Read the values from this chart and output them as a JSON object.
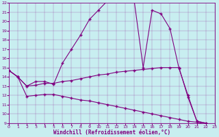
{
  "bg_color": "#c8eef0",
  "line_color": "#800080",
  "xlabel": "Windchill (Refroidissement éolien,°C)",
  "xlim": [
    0,
    23
  ],
  "ylim": [
    9,
    22
  ],
  "yticks": [
    9,
    10,
    11,
    12,
    13,
    14,
    15,
    16,
    17,
    18,
    19,
    20,
    21,
    22
  ],
  "xticks": [
    0,
    1,
    2,
    3,
    4,
    5,
    6,
    7,
    8,
    9,
    10,
    11,
    12,
    13,
    14,
    15,
    16,
    17,
    18,
    19,
    20,
    21,
    22,
    23
  ],
  "series1_x": [
    0,
    1,
    2,
    3,
    4,
    5,
    6,
    7,
    8,
    9,
    10,
    11,
    12,
    13,
    14,
    15,
    16,
    17,
    18,
    19,
    20,
    21,
    22,
    23
  ],
  "series1_y": [
    14.7,
    14.0,
    13.0,
    13.5,
    13.5,
    13.2,
    15.5,
    17.0,
    18.5,
    20.2,
    21.2,
    22.2,
    22.2,
    22.2,
    22.2,
    15.0,
    21.2,
    20.8,
    19.2,
    14.9,
    12.0,
    9.2,
    9.0,
    8.7
  ],
  "series2_x": [
    0,
    1,
    2,
    3,
    4,
    5,
    6,
    7,
    8,
    9,
    10,
    11,
    12,
    13,
    14,
    15,
    16,
    17,
    18,
    19,
    20,
    21,
    22,
    23
  ],
  "series2_y": [
    14.7,
    14.0,
    13.0,
    13.1,
    13.3,
    13.3,
    13.5,
    13.6,
    13.8,
    14.0,
    14.2,
    14.3,
    14.5,
    14.6,
    14.7,
    14.8,
    14.9,
    15.0,
    15.0,
    15.0,
    11.8,
    9.2,
    9.0,
    8.7
  ],
  "series3_x": [
    0,
    1,
    2,
    3,
    4,
    5,
    6,
    7,
    8,
    9,
    10,
    11,
    12,
    13,
    14,
    15,
    16,
    17,
    18,
    19,
    20,
    21,
    22,
    23
  ],
  "series3_y": [
    14.7,
    14.0,
    11.9,
    12.0,
    12.1,
    12.1,
    11.9,
    11.7,
    11.5,
    11.4,
    11.2,
    11.0,
    10.8,
    10.6,
    10.4,
    10.2,
    10.0,
    9.8,
    9.6,
    9.4,
    9.2,
    9.1,
    8.9,
    8.7
  ]
}
